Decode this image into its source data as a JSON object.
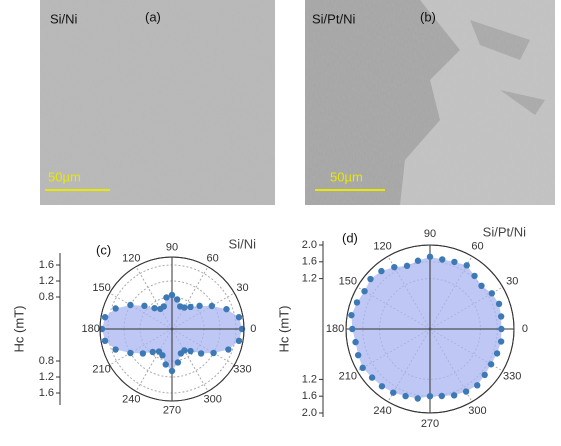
{
  "images": [
    {
      "sample": "Si/Ni",
      "label": "(a)",
      "scale_bar": "50µm"
    },
    {
      "sample": "Si/Pt/Ni",
      "label": "(b)",
      "scale_bar": "50µm"
    }
  ],
  "chart_data": [
    {
      "type": "polar",
      "panel_label": "(c)",
      "title": "Si/Ni",
      "r_label": "Hc (mT)",
      "theta": [
        0,
        10,
        20,
        30,
        40,
        50,
        60,
        70,
        80,
        90,
        100,
        110,
        120,
        130,
        140,
        150,
        160,
        170,
        180,
        190,
        200,
        210,
        220,
        230,
        240,
        250,
        260,
        270,
        280,
        290,
        300,
        310,
        320,
        330,
        340,
        350
      ],
      "values": [
        1.75,
        1.7,
        1.45,
        1.15,
        0.9,
        0.72,
        0.62,
        0.6,
        0.75,
        0.85,
        0.8,
        0.6,
        0.58,
        0.68,
        0.9,
        1.2,
        1.5,
        1.7,
        1.75,
        1.7,
        1.5,
        1.2,
        0.95,
        0.75,
        0.65,
        0.7,
        0.9,
        1.05,
        0.85,
        0.65,
        0.62,
        0.72,
        0.95,
        1.2,
        1.5,
        1.7
      ],
      "color": "#3d7ab5",
      "fill": "#a9b4f2",
      "rlim": [
        0,
        1.8
      ],
      "rticks": [
        0.8,
        1.2,
        1.6
      ],
      "thetaticks": [
        0,
        30,
        60,
        90,
        120,
        150,
        180,
        210,
        240,
        270,
        300,
        330
      ],
      "grid": true
    },
    {
      "type": "polar",
      "panel_label": "(d)",
      "title": "Si/Pt/Ni",
      "r_label": "Hc (mT)",
      "theta": [
        0,
        10,
        20,
        30,
        40,
        50,
        60,
        70,
        80,
        90,
        100,
        110,
        120,
        130,
        140,
        150,
        160,
        170,
        180,
        190,
        200,
        210,
        220,
        230,
        240,
        250,
        260,
        270,
        280,
        290,
        300,
        310,
        320,
        330,
        340,
        350
      ],
      "values": [
        1.7,
        1.72,
        1.75,
        1.7,
        1.6,
        1.65,
        1.75,
        1.7,
        1.68,
        1.72,
        1.65,
        1.6,
        1.7,
        1.8,
        1.85,
        1.8,
        1.85,
        1.9,
        1.85,
        1.8,
        1.82,
        1.85,
        1.8,
        1.78,
        1.75,
        1.7,
        1.68,
        1.6,
        1.62,
        1.68,
        1.72,
        1.75,
        1.7,
        1.68,
        1.7,
        1.72
      ],
      "color": "#3d7ab5",
      "fill": "#a9b4f2",
      "rlim": [
        0,
        2
      ],
      "rticks": [
        1.2,
        1.6,
        {
          "value": 2,
          "label": "2.0"
        }
      ],
      "thetaticks": [
        0,
        30,
        60,
        90,
        120,
        150,
        180,
        210,
        240,
        270,
        300,
        330
      ],
      "grid": true
    }
  ]
}
